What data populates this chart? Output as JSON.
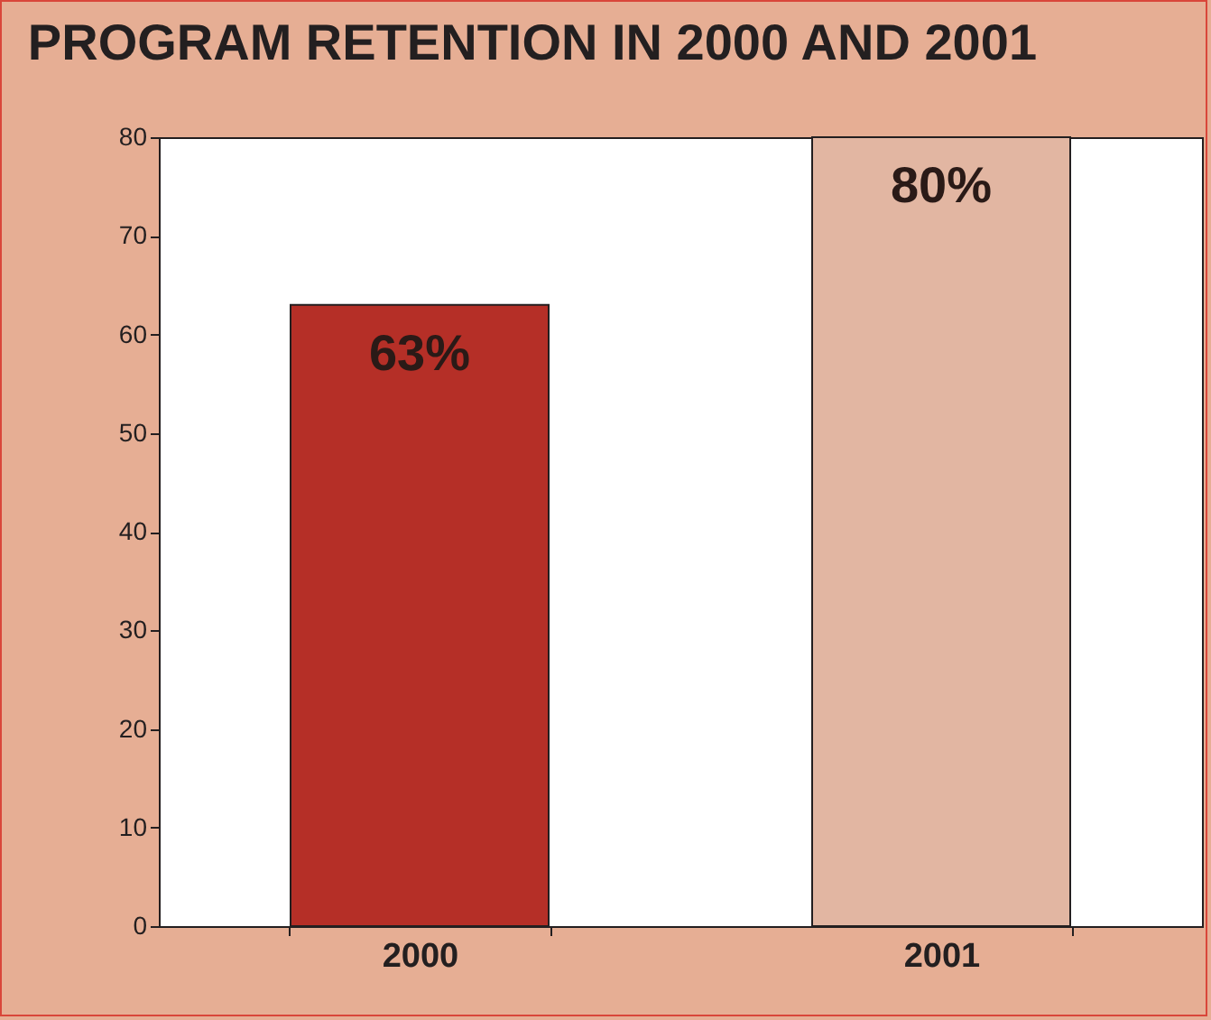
{
  "chart_data": {
    "type": "bar",
    "title": "PROGRAM RETENTION IN 2000 AND 2001",
    "categories": [
      "2000",
      "2001"
    ],
    "values": [
      63,
      80
    ],
    "colors": [
      "#b52f27",
      "#e2b6a2"
    ],
    "value_labels": [
      "63%",
      "80%"
    ],
    "ylim": [
      0,
      80
    ],
    "yticks": [
      0,
      10,
      20,
      30,
      40,
      50,
      60,
      70,
      80
    ],
    "grid": false
  }
}
